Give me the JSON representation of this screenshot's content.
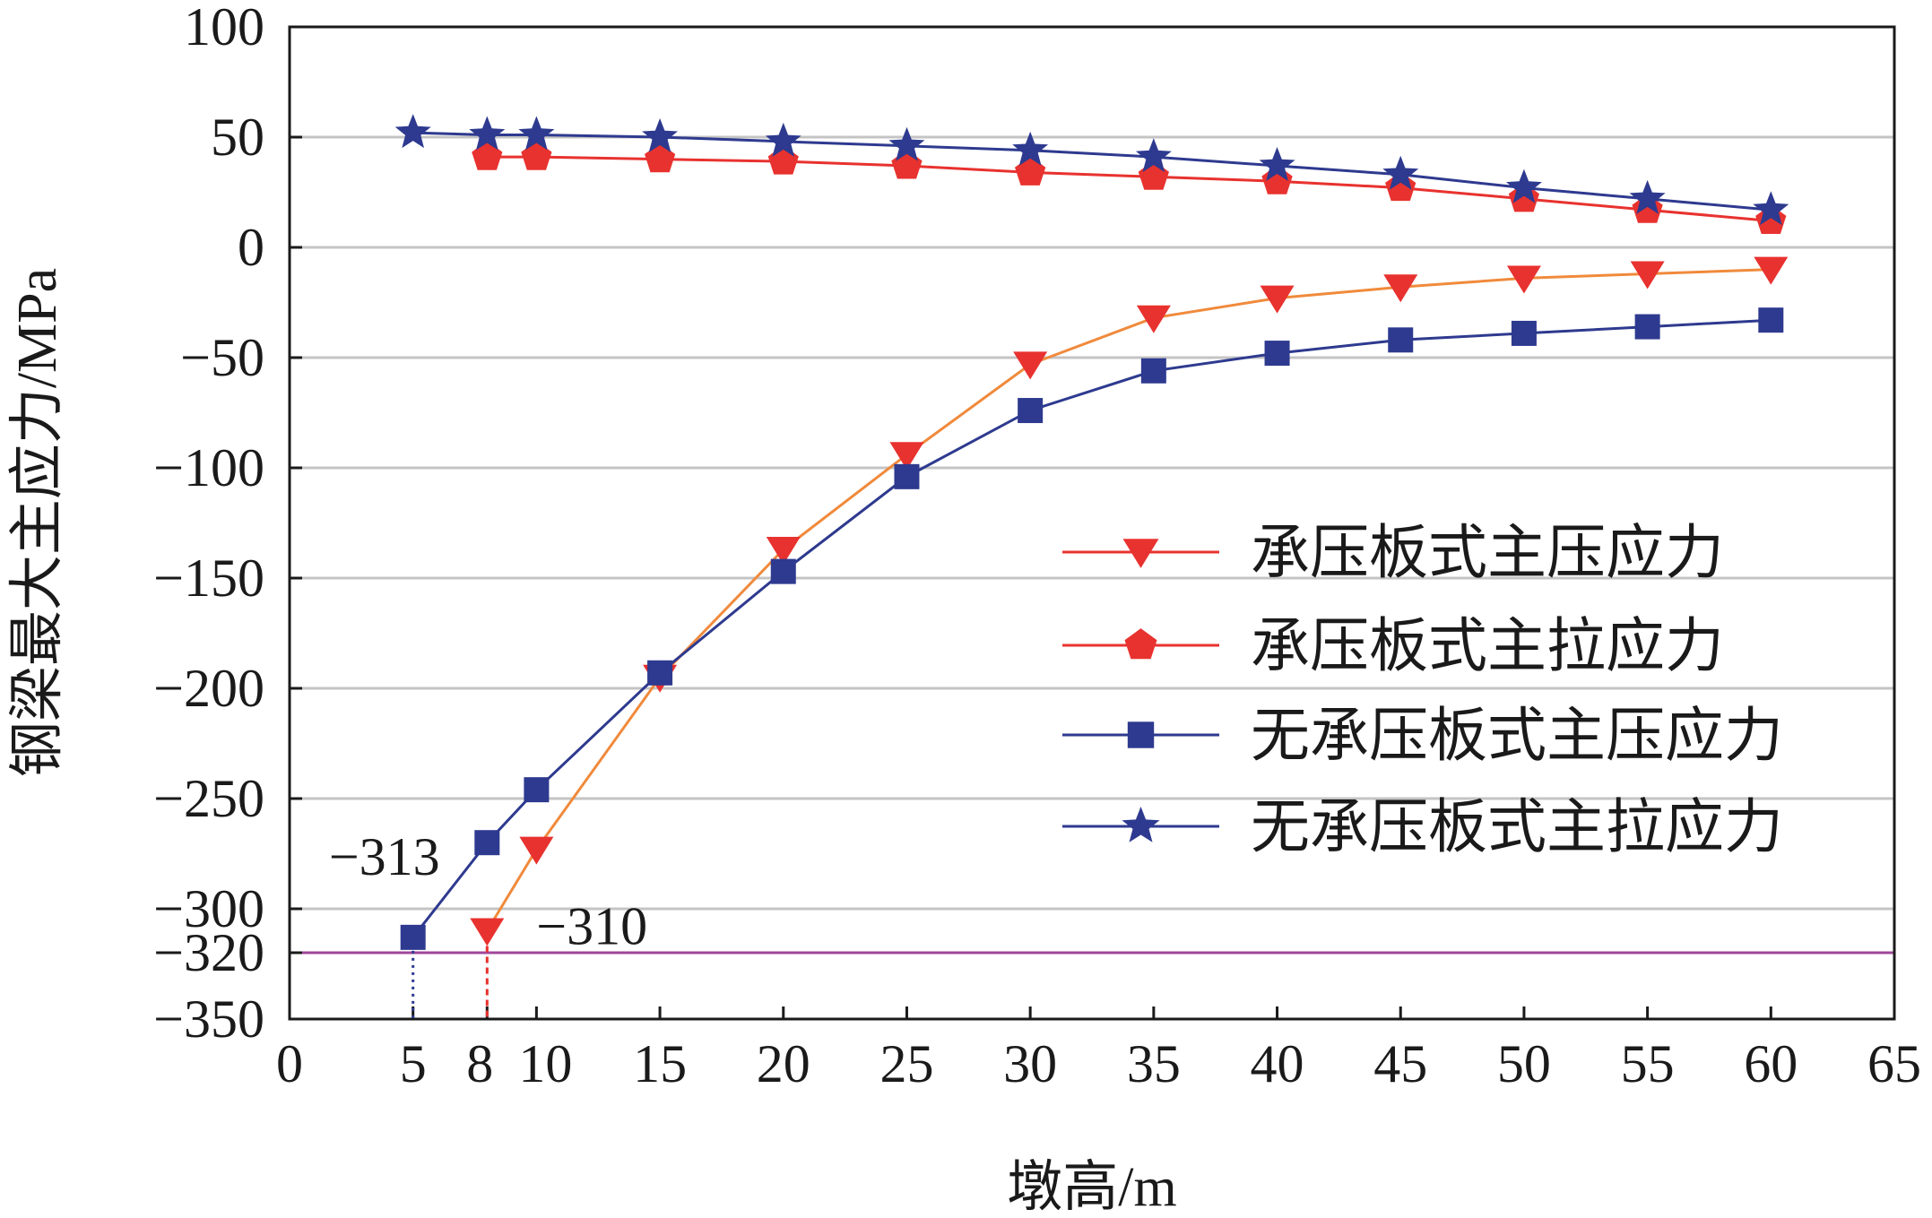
{
  "chart_data": {
    "type": "line",
    "title": "",
    "xlabel": "墩高/m",
    "ylabel": "钢梁最大主应力/MPa",
    "xlim": [
      0,
      65
    ],
    "x_ticks": [
      0,
      5,
      8,
      10,
      15,
      20,
      25,
      30,
      35,
      40,
      45,
      50,
      55,
      60,
      65
    ],
    "x_tick_labels": [
      "0",
      "5",
      "8",
      "10",
      "15",
      "20",
      "25",
      "30",
      "35",
      "40",
      "45",
      "50",
      "55",
      "60",
      "65"
    ],
    "y_ticks": [
      100,
      50,
      0,
      -50,
      -100,
      -150,
      -200,
      -250,
      -300,
      -320,
      -350
    ],
    "y_tick_labels": [
      "100",
      "50",
      "0",
      "−50",
      "−100",
      "−150",
      "−200",
      "−250",
      "−300",
      "−320",
      "−350"
    ],
    "grid_y": [
      50,
      0,
      -50,
      -100,
      -150,
      -200,
      -250,
      -300
    ],
    "reference_line": {
      "y": -320,
      "color": "#a0469b"
    },
    "legend_position": "center-right",
    "series": [
      {
        "name": "承压板式主压应力",
        "marker": "triangle-down",
        "color": "#e8322f",
        "line_color": "#f08a3c",
        "x": [
          8,
          10,
          15,
          20,
          25,
          30,
          35,
          40,
          45,
          50,
          55,
          60
        ],
        "y": [
          -310,
          -273,
          -195,
          -137,
          -94,
          -53,
          -32,
          -23,
          -18,
          -14,
          -12,
          -10
        ]
      },
      {
        "name": "承压板式主拉应力",
        "marker": "pentagon",
        "color": "#e8322f",
        "line_color": "#e8322f",
        "x": [
          8,
          10,
          15,
          20,
          25,
          30,
          35,
          40,
          45,
          50,
          55,
          60
        ],
        "y": [
          41,
          41,
          40,
          39,
          37,
          34,
          32,
          30,
          27,
          22,
          17,
          12
        ]
      },
      {
        "name": "无承压板式主压应力",
        "marker": "square",
        "color": "#2e3a8f",
        "line_color": "#2e3a8f",
        "x": [
          5,
          8,
          10,
          15,
          20,
          25,
          30,
          35,
          40,
          45,
          50,
          55,
          60
        ],
        "y": [
          -313,
          -270,
          -246,
          -193,
          -147,
          -104,
          -74,
          -56,
          -48,
          -42,
          -39,
          -36,
          -33
        ]
      },
      {
        "name": "无承压板式主拉应力",
        "marker": "star",
        "color": "#2e3a8f",
        "line_color": "#2e3a8f",
        "x": [
          5,
          8,
          10,
          15,
          20,
          25,
          30,
          35,
          40,
          45,
          50,
          55,
          60
        ],
        "y": [
          52,
          51,
          51,
          50,
          48,
          46,
          44,
          41,
          37,
          33,
          27,
          22,
          17
        ]
      }
    ],
    "annotations": [
      {
        "text": "−313",
        "x": 5,
        "y": -313,
        "color": "#2e3a8f"
      },
      {
        "text": "−310",
        "x": 8,
        "y": -310,
        "color": "#e8322f"
      }
    ]
  }
}
